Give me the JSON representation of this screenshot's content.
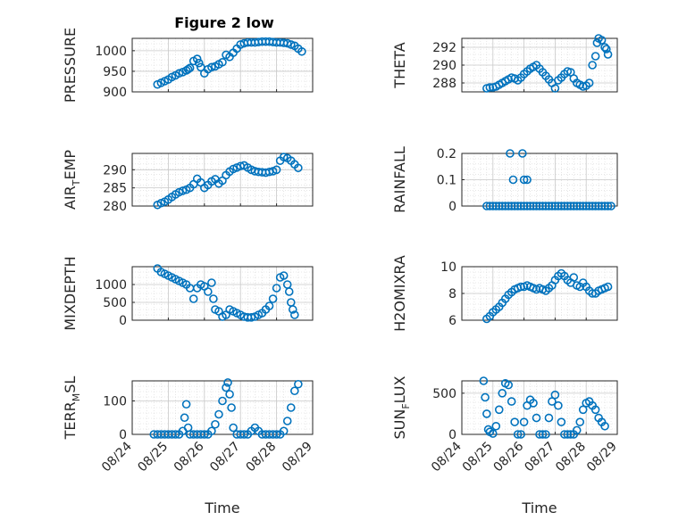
{
  "accent_color": "#0072BD",
  "chart_data": [
    {
      "type": "scatter",
      "title": "Figure 2 low",
      "ylabel": "PRESSURE",
      "ylim": [
        900,
        1030
      ],
      "yticks": [
        "900",
        "950",
        "1000"
      ],
      "xlim": [
        0,
        5
      ],
      "show_xticklabels": false,
      "grid": true,
      "series": [
        {
          "x": [
            0.7,
            0.8,
            0.9,
            1.0,
            1.1,
            1.2,
            1.3,
            1.4,
            1.5,
            1.55,
            1.6,
            1.7,
            1.8,
            1.85,
            1.9,
            2.0,
            2.1,
            2.2,
            2.3,
            2.4,
            2.5,
            2.6,
            2.7,
            2.8,
            2.9,
            3.0,
            3.1,
            3.2,
            3.3,
            3.4,
            3.5,
            3.6,
            3.7,
            3.8,
            3.9,
            4.0,
            4.1,
            4.2,
            4.3,
            4.4,
            4.5,
            4.6,
            4.7
          ],
          "y": [
            918,
            922,
            926,
            930,
            936,
            940,
            945,
            948,
            952,
            955,
            958,
            975,
            980,
            970,
            960,
            945,
            955,
            960,
            962,
            967,
            972,
            990,
            985,
            995,
            1005,
            1015,
            1018,
            1020,
            1020,
            1020,
            1021,
            1022,
            1022,
            1022,
            1021,
            1020,
            1020,
            1019,
            1018,
            1015,
            1012,
            1005,
            998
          ]
        }
      ]
    },
    {
      "type": "scatter",
      "ylabel": "THETA",
      "ylim": [
        287,
        293
      ],
      "yticks": [
        "288",
        "290",
        "292"
      ],
      "xlim": [
        0,
        5
      ],
      "show_xticklabels": false,
      "grid": true,
      "series": [
        {
          "x": [
            0.8,
            0.9,
            1.0,
            1.1,
            1.2,
            1.3,
            1.4,
            1.5,
            1.6,
            1.7,
            1.8,
            1.9,
            2.0,
            2.1,
            2.2,
            2.3,
            2.4,
            2.5,
            2.6,
            2.7,
            2.8,
            2.9,
            3.0,
            3.1,
            3.2,
            3.3,
            3.4,
            3.5,
            3.6,
            3.7,
            3.8,
            3.9,
            4.0,
            4.1,
            4.2,
            4.3,
            4.35,
            4.4,
            4.5,
            4.6,
            4.65,
            4.7
          ],
          "y": [
            287.4,
            287.5,
            287.5,
            287.6,
            287.8,
            288.0,
            288.2,
            288.4,
            288.6,
            288.5,
            288.3,
            288.6,
            289.0,
            289.3,
            289.6,
            289.8,
            290.0,
            289.6,
            289.2,
            288.8,
            288.4,
            288.0,
            287.4,
            288.3,
            288.6,
            289.0,
            289.3,
            289.2,
            288.5,
            288.0,
            287.8,
            287.6,
            287.7,
            288.0,
            290.0,
            291.0,
            292.5,
            293.0,
            292.8,
            292.0,
            291.8,
            291.2
          ]
        }
      ]
    },
    {
      "type": "scatter",
      "ylabel": "AIR_TEMP",
      "ylim": [
        280,
        294.5
      ],
      "yticks": [
        "280",
        "285",
        "290"
      ],
      "xlim": [
        0,
        5
      ],
      "show_xticklabels": false,
      "grid": true,
      "series": [
        {
          "x": [
            0.7,
            0.8,
            0.9,
            1.0,
            1.1,
            1.2,
            1.3,
            1.4,
            1.5,
            1.6,
            1.7,
            1.8,
            1.9,
            2.0,
            2.1,
            2.2,
            2.3,
            2.4,
            2.5,
            2.6,
            2.7,
            2.8,
            2.9,
            3.0,
            3.1,
            3.2,
            3.3,
            3.4,
            3.5,
            3.6,
            3.7,
            3.8,
            3.9,
            4.0,
            4.1,
            4.2,
            4.3,
            4.4,
            4.5,
            4.6
          ],
          "y": [
            280.3,
            280.8,
            281.2,
            281.8,
            282.5,
            283.2,
            283.8,
            284.2,
            284.5,
            285.0,
            286.0,
            287.5,
            286.5,
            285.0,
            285.8,
            286.8,
            287.4,
            286.2,
            287.0,
            288.5,
            289.5,
            290.2,
            290.6,
            291.0,
            291.2,
            290.6,
            290.0,
            289.6,
            289.4,
            289.3,
            289.2,
            289.4,
            289.6,
            290.0,
            292.5,
            293.5,
            293.2,
            292.5,
            291.5,
            290.5
          ]
        }
      ]
    },
    {
      "type": "scatter",
      "ylabel": "RAINFALL",
      "ylim": [
        0,
        0.2
      ],
      "yticks": [
        "0",
        "0.1",
        "0.2"
      ],
      "xlim": [
        0,
        5
      ],
      "show_xticklabels": false,
      "grid": true,
      "series": [
        {
          "x": [
            0.8,
            0.9,
            1.0,
            1.1,
            1.2,
            1.3,
            1.4,
            1.5,
            1.6,
            1.7,
            1.8,
            1.9,
            2.0,
            2.1,
            2.2,
            2.3,
            2.4,
            2.5,
            2.6,
            2.7,
            2.8,
            2.9,
            3.0,
            3.1,
            3.2,
            3.3,
            3.4,
            3.5,
            3.6,
            3.7,
            3.8,
            3.9,
            4.0,
            4.1,
            4.2,
            4.3,
            4.4,
            4.5,
            4.6,
            4.7,
            4.8,
            1.55,
            1.65,
            1.95,
            2.0,
            2.1
          ],
          "y": [
            0,
            0,
            0,
            0,
            0,
            0,
            0,
            0,
            0,
            0,
            0,
            0,
            0,
            0,
            0,
            0,
            0,
            0,
            0,
            0,
            0,
            0,
            0,
            0,
            0,
            0,
            0,
            0,
            0,
            0,
            0,
            0,
            0,
            0,
            0,
            0,
            0,
            0,
            0,
            0,
            0,
            0.2,
            0.1,
            0.2,
            0.1,
            0.1
          ]
        }
      ]
    },
    {
      "type": "scatter",
      "ylabel": "MIXDEPTH",
      "ylim": [
        0,
        1500
      ],
      "yticks": [
        "0",
        "500",
        "1000"
      ],
      "xlim": [
        0,
        5
      ],
      "show_xticklabels": false,
      "grid": true,
      "series": [
        {
          "x": [
            0.7,
            0.8,
            0.9,
            1.0,
            1.1,
            1.2,
            1.3,
            1.4,
            1.5,
            1.6,
            1.7,
            1.8,
            1.9,
            2.0,
            2.1,
            2.2,
            2.25,
            2.3,
            2.4,
            2.5,
            2.6,
            2.7,
            2.8,
            2.9,
            3.0,
            3.1,
            3.2,
            3.3,
            3.4,
            3.5,
            3.6,
            3.7,
            3.8,
            3.9,
            4.0,
            4.1,
            4.2,
            4.3,
            4.35,
            4.4,
            4.45,
            4.5
          ],
          "y": [
            1450,
            1350,
            1300,
            1250,
            1200,
            1150,
            1100,
            1050,
            1000,
            900,
            600,
            900,
            1000,
            950,
            800,
            1050,
            600,
            300,
            250,
            100,
            150,
            300,
            250,
            200,
            150,
            100,
            80,
            80,
            100,
            150,
            200,
            300,
            400,
            600,
            900,
            1200,
            1250,
            1000,
            800,
            500,
            300,
            150
          ]
        }
      ]
    },
    {
      "type": "scatter",
      "ylabel": "H2OMIXRA",
      "ylim": [
        6,
        10
      ],
      "yticks": [
        "6",
        "8",
        "10"
      ],
      "xlim": [
        0,
        5
      ],
      "show_xticklabels": false,
      "grid": true,
      "series": [
        {
          "x": [
            0.8,
            0.9,
            1.0,
            1.1,
            1.2,
            1.3,
            1.4,
            1.5,
            1.6,
            1.7,
            1.8,
            1.9,
            2.0,
            2.1,
            2.2,
            2.3,
            2.4,
            2.5,
            2.6,
            2.7,
            2.8,
            2.9,
            3.0,
            3.1,
            3.2,
            3.3,
            3.4,
            3.5,
            3.6,
            3.7,
            3.8,
            3.9,
            4.0,
            4.1,
            4.2,
            4.3,
            4.4,
            4.5,
            4.6,
            4.7
          ],
          "y": [
            6.1,
            6.3,
            6.6,
            6.8,
            7.0,
            7.3,
            7.6,
            7.9,
            8.1,
            8.3,
            8.4,
            8.5,
            8.5,
            8.6,
            8.5,
            8.4,
            8.3,
            8.4,
            8.3,
            8.2,
            8.4,
            8.6,
            9.0,
            9.3,
            9.5,
            9.3,
            9.0,
            8.8,
            9.2,
            8.6,
            8.5,
            8.8,
            8.5,
            8.2,
            8.0,
            8.0,
            8.2,
            8.3,
            8.4,
            8.5
          ]
        }
      ]
    },
    {
      "type": "scatter",
      "ylabel": "TERR_MSL",
      "ylim": [
        0,
        160
      ],
      "yticks": [
        "0",
        "100"
      ],
      "xlim": [
        0,
        5
      ],
      "xticks": [
        "08/24",
        "08/25",
        "08/26",
        "08/27",
        "08/28",
        "08/29"
      ],
      "xlabel": "Time",
      "grid": true,
      "series": [
        {
          "x": [
            0.6,
            0.7,
            0.8,
            0.9,
            1.0,
            1.1,
            1.2,
            1.3,
            1.4,
            1.45,
            1.5,
            1.55,
            1.6,
            1.7,
            1.8,
            1.9,
            2.0,
            2.1,
            2.2,
            2.3,
            2.4,
            2.5,
            2.6,
            2.65,
            2.7,
            2.75,
            2.8,
            2.9,
            3.0,
            3.1,
            3.2,
            3.3,
            3.4,
            3.5,
            3.6,
            3.7,
            3.8,
            3.9,
            4.0,
            4.1,
            4.2,
            4.3,
            4.4,
            4.5,
            4.6
          ],
          "y": [
            0,
            0,
            0,
            0,
            0,
            0,
            0,
            0,
            10,
            50,
            90,
            20,
            0,
            0,
            0,
            0,
            0,
            0,
            10,
            30,
            60,
            100,
            140,
            155,
            120,
            80,
            20,
            0,
            0,
            0,
            0,
            10,
            20,
            10,
            0,
            0,
            0,
            0,
            0,
            0,
            10,
            40,
            80,
            130,
            150
          ]
        }
      ]
    },
    {
      "type": "scatter",
      "ylabel": "SUN_FLUX",
      "ylim": [
        0,
        650
      ],
      "yticks": [
        "0",
        "500"
      ],
      "xlim": [
        0,
        5
      ],
      "xticks": [
        "08/24",
        "08/25",
        "08/26",
        "08/27",
        "08/28",
        "08/29"
      ],
      "xlabel": "Time",
      "grid": true,
      "series": [
        {
          "x": [
            0.7,
            0.75,
            0.8,
            0.85,
            0.9,
            1.0,
            1.1,
            1.2,
            1.3,
            1.4,
            1.5,
            1.6,
            1.7,
            1.8,
            1.9,
            2.0,
            2.1,
            2.2,
            2.3,
            2.4,
            2.5,
            2.6,
            2.7,
            2.8,
            2.9,
            3.0,
            3.1,
            3.2,
            3.3,
            3.4,
            3.5,
            3.6,
            3.7,
            3.8,
            3.9,
            4.0,
            4.1,
            4.2,
            4.3,
            4.4,
            4.5,
            4.6
          ],
          "y": [
            650,
            450,
            250,
            60,
            30,
            10,
            100,
            300,
            500,
            620,
            600,
            400,
            150,
            0,
            0,
            150,
            350,
            420,
            380,
            200,
            0,
            0,
            0,
            200,
            400,
            480,
            350,
            150,
            0,
            0,
            0,
            0,
            50,
            150,
            300,
            380,
            400,
            350,
            300,
            200,
            150,
            100
          ]
        }
      ]
    }
  ]
}
